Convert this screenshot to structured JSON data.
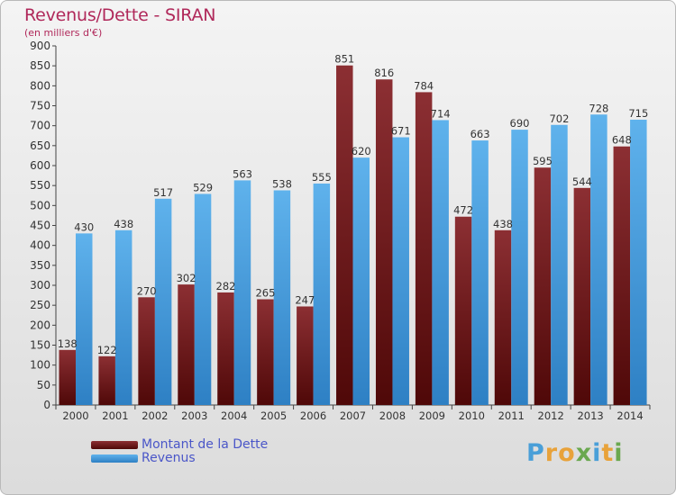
{
  "title": "Revenus/Dette - SIRAN",
  "subtitle": "(en milliers d'€)",
  "colors": {
    "dette": "#6a1a1c",
    "revenus": "#3f98dc",
    "axis": "#555555",
    "title": "#b0285a",
    "legend_text": "#4a56c8"
  },
  "logo": {
    "text": "Proxiti",
    "letters": [
      {
        "ch": "P",
        "color": "#4a9fd8"
      },
      {
        "ch": "r",
        "color": "#e8a23a"
      },
      {
        "ch": "o",
        "color": "#e8a23a"
      },
      {
        "ch": "x",
        "color": "#6aa84f"
      },
      {
        "ch": "i",
        "color": "#4a9fd8"
      },
      {
        "ch": "t",
        "color": "#e8a23a"
      },
      {
        "ch": "i",
        "color": "#6aa84f"
      }
    ]
  },
  "legend": [
    {
      "label": "Montant de la Dette",
      "color": "#6a1a1c"
    },
    {
      "label": "Revenus",
      "color": "#3f98dc"
    }
  ],
  "chart_data": {
    "type": "bar",
    "title": "Revenus/Dette - SIRAN",
    "subtitle": "(en milliers d'€)",
    "categories": [
      "2000",
      "2001",
      "2002",
      "2003",
      "2004",
      "2005",
      "2006",
      "2007",
      "2008",
      "2009",
      "2010",
      "2011",
      "2012",
      "2013",
      "2014"
    ],
    "series": [
      {
        "name": "Montant de la Dette",
        "color": "#6a1a1c",
        "values": [
          138,
          122,
          270,
          302,
          282,
          265,
          247,
          851,
          816,
          784,
          472,
          438,
          595,
          544,
          648
        ]
      },
      {
        "name": "Revenus",
        "color": "#3f98dc",
        "values": [
          430,
          438,
          517,
          529,
          563,
          538,
          555,
          620,
          671,
          714,
          663,
          690,
          702,
          728,
          715
        ]
      }
    ],
    "ylim": [
      0,
      900
    ],
    "yticks": [
      0,
      50,
      100,
      150,
      200,
      250,
      300,
      350,
      400,
      450,
      500,
      550,
      600,
      650,
      700,
      750,
      800,
      850,
      900
    ],
    "grid": false,
    "legend_position": "bottom-left"
  }
}
